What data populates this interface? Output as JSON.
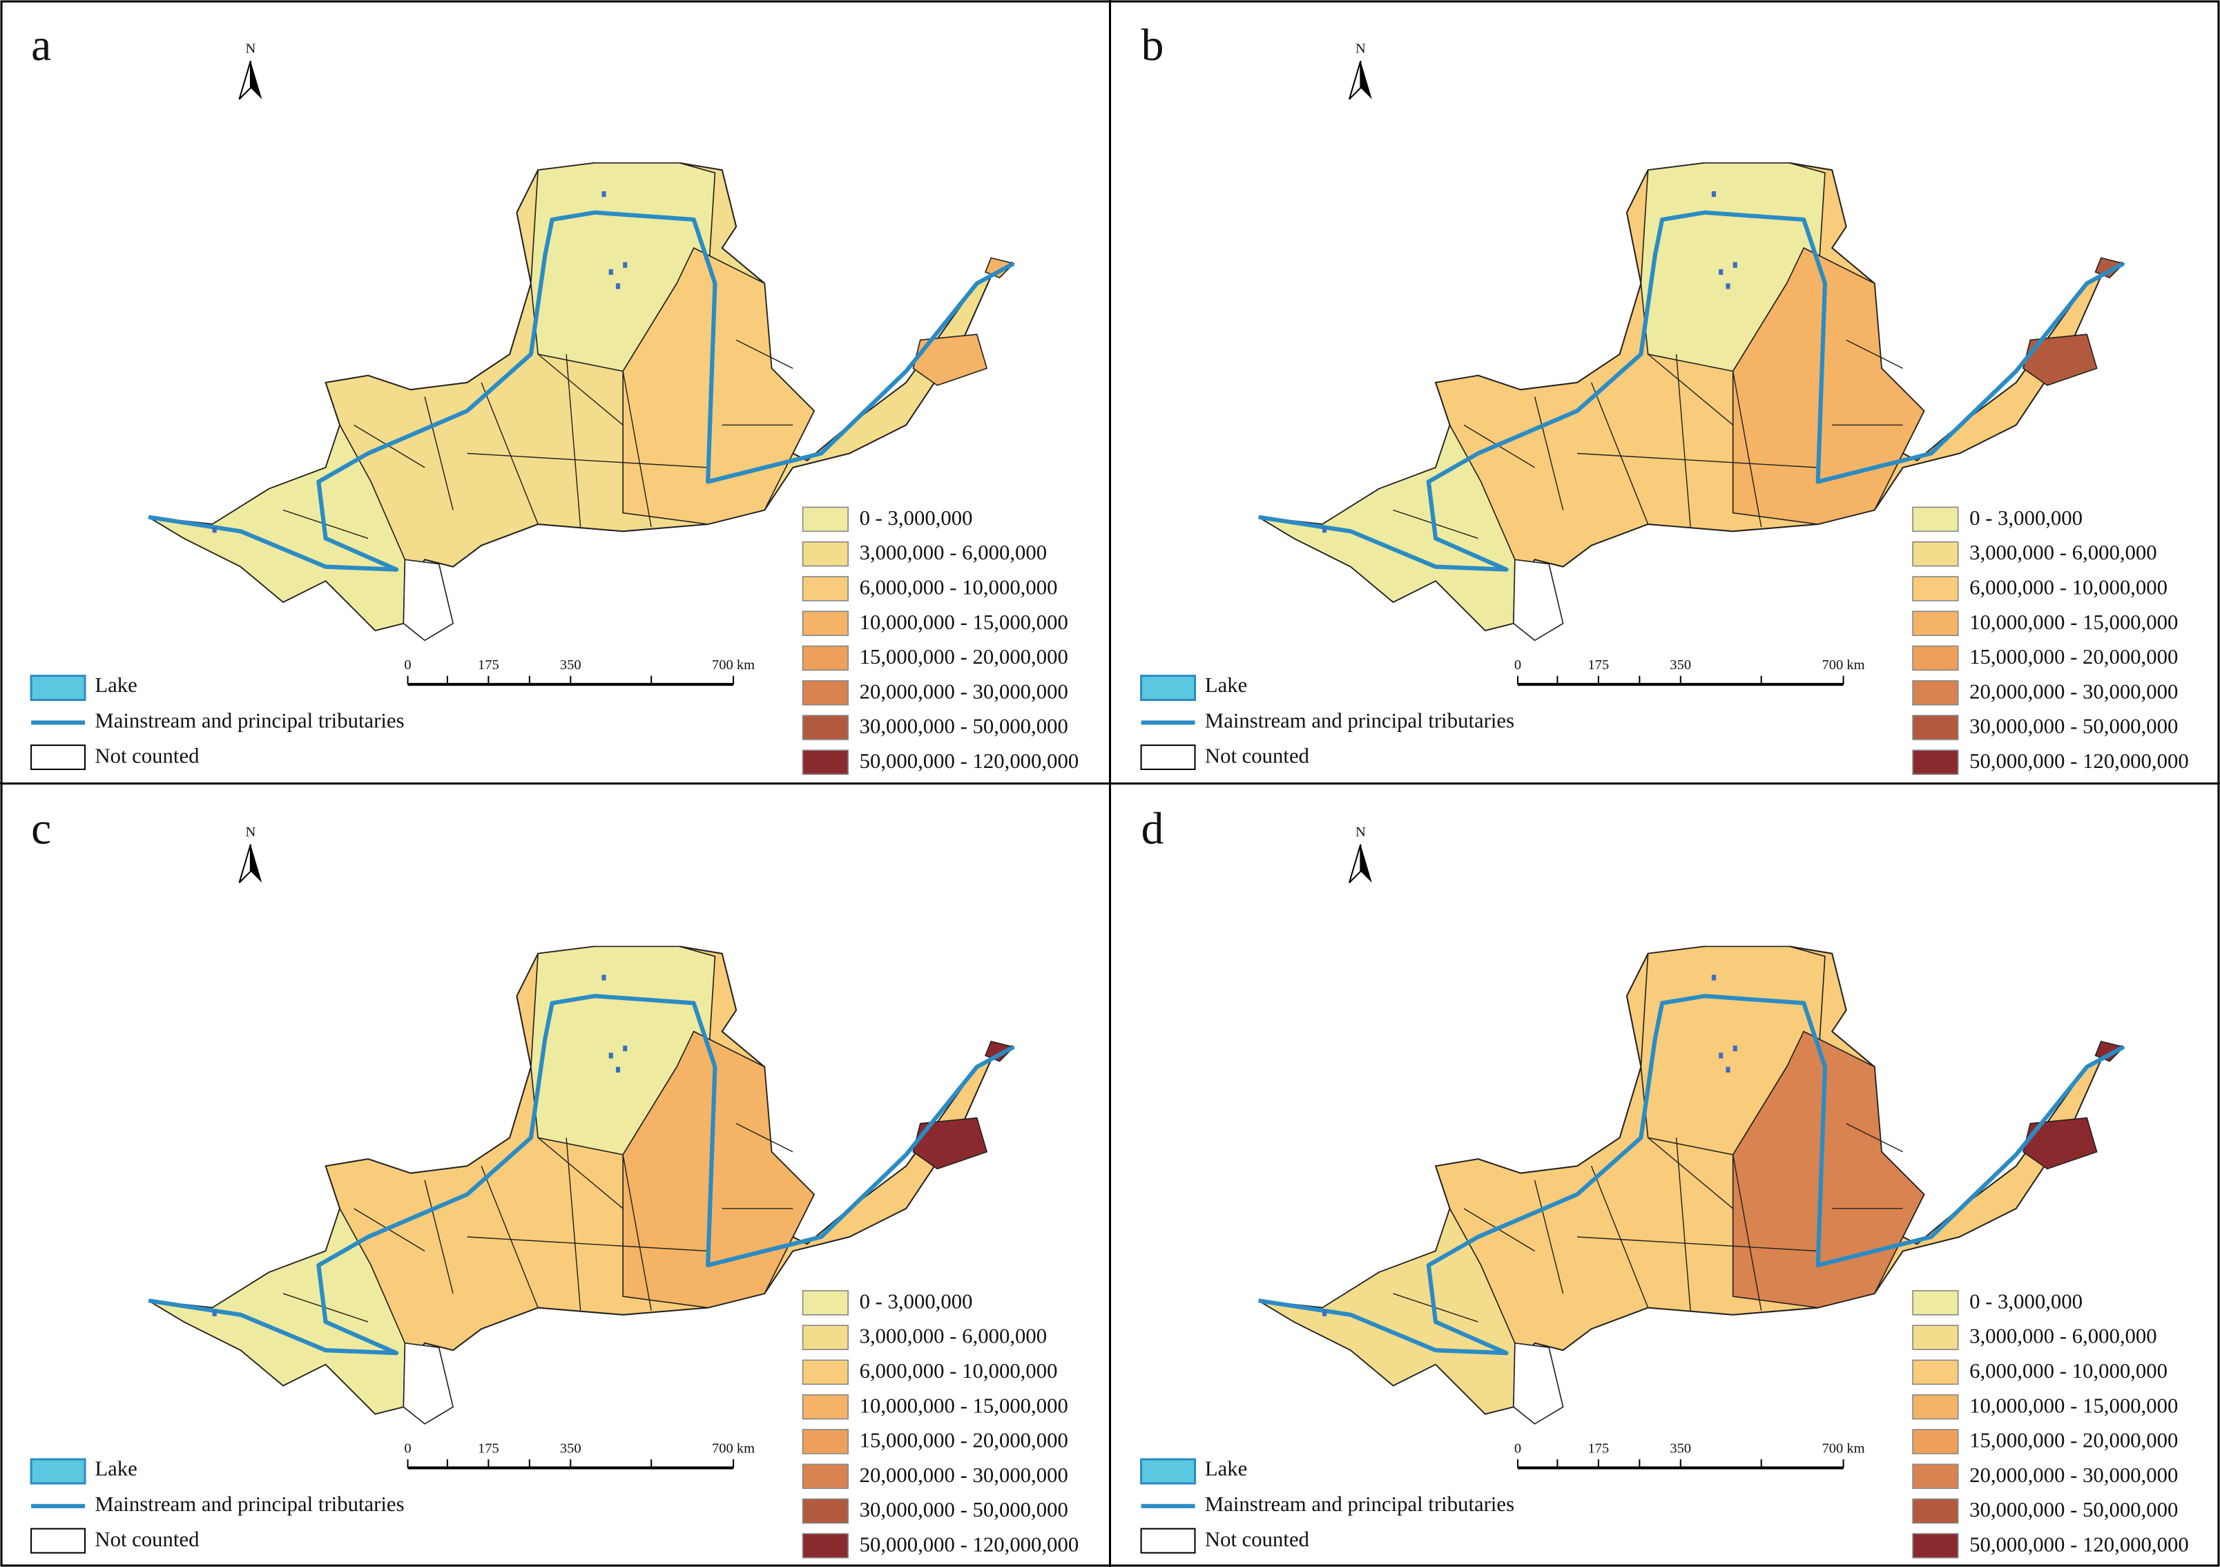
{
  "panels": [
    {
      "label": "a"
    },
    {
      "label": "b"
    },
    {
      "label": "c"
    },
    {
      "label": "d"
    }
  ],
  "north": "N",
  "scale_labels": [
    "0",
    "175",
    "350",
    "700 km"
  ],
  "legend_items": [
    "Lake",
    "Mainstream and principal tributaries",
    "Not counted"
  ],
  "classes": [
    {
      "label": "0 - 3,000,000",
      "color": "#eeeaa0"
    },
    {
      "label": "3,000,000 - 6,000,000",
      "color": "#f3dc8c"
    },
    {
      "label": "6,000,000 - 10,000,000",
      "color": "#f8cc7a"
    },
    {
      "label": "10,000,000 - 15,000,000",
      "color": "#f5b365"
    },
    {
      "label": "15,000,000 - 20,000,000",
      "color": "#eea05a"
    },
    {
      "label": "20,000,000 - 30,000,000",
      "color": "#d98350"
    },
    {
      "label": "30,000,000 - 50,000,000",
      "color": "#b35a3e"
    },
    {
      "label": "50,000,000 - 120,000,000",
      "color": "#8b2a2e"
    }
  ]
}
